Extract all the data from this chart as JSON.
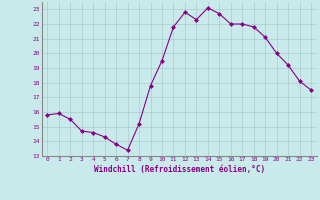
{
  "x": [
    0,
    1,
    2,
    3,
    4,
    5,
    6,
    7,
    8,
    9,
    10,
    11,
    12,
    13,
    14,
    15,
    16,
    17,
    18,
    19,
    20,
    21,
    22,
    23
  ],
  "y": [
    15.8,
    15.9,
    15.5,
    14.7,
    14.6,
    14.3,
    13.8,
    13.4,
    15.2,
    17.8,
    19.5,
    21.8,
    22.8,
    22.3,
    23.1,
    22.7,
    22.0,
    22.0,
    21.8,
    21.1,
    20.0,
    19.2,
    18.1,
    17.5
  ],
  "xlim": [
    -0.5,
    23.5
  ],
  "ylim": [
    13,
    23.5
  ],
  "yticks": [
    13,
    14,
    15,
    16,
    17,
    18,
    19,
    20,
    21,
    22,
    23
  ],
  "xticks": [
    0,
    1,
    2,
    3,
    4,
    5,
    6,
    7,
    8,
    9,
    10,
    11,
    12,
    13,
    14,
    15,
    16,
    17,
    18,
    19,
    20,
    21,
    22,
    23
  ],
  "xlabel": "Windchill (Refroidissement éolien,°C)",
  "line_color": "#880088",
  "marker": "D",
  "marker_size": 2,
  "bg_color": "#c8eaea",
  "grid_color": "#aacccc",
  "tick_label_color": "#880088",
  "xlabel_color": "#880088",
  "spine_color": "#888888"
}
